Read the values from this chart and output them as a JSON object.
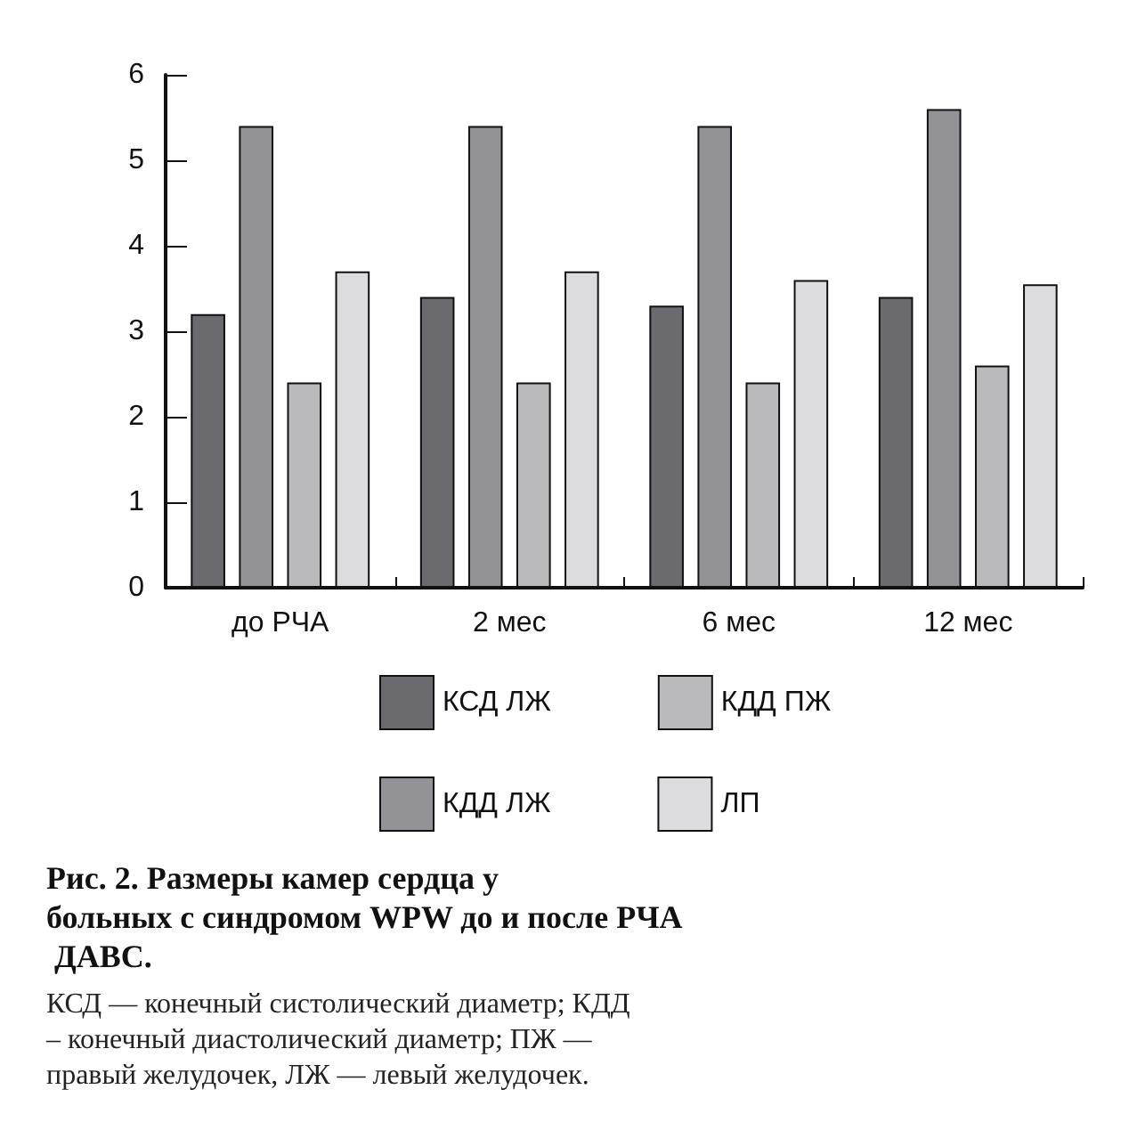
{
  "chart_data": {
    "type": "bar",
    "title": "Рис. 2. Размеры камер сердца у больных с синдромом WPW до и после РЧА ДАВС.",
    "annotations": [
      "КСД — конечный систолический диаметр; КДД – конечный диастолический диаметр; ПЖ —  правый желудочек, ЛЖ — левый желудочек."
    ],
    "categories": [
      "до РЧА",
      "2 мес",
      "6 мес",
      "12 мес"
    ],
    "series": [
      {
        "name": "КСД ЛЖ",
        "color": "#6b6b6f",
        "values": [
          3.2,
          3.4,
          3.3,
          3.4
        ]
      },
      {
        "name": "КДД ЛЖ",
        "color": "#939397",
        "values": [
          5.4,
          5.4,
          5.4,
          5.6
        ]
      },
      {
        "name": "КДД ПЖ",
        "color": "#bababd",
        "values": [
          2.4,
          2.4,
          2.4,
          2.6
        ]
      },
      {
        "name": "ЛП",
        "color": "#dcdcde",
        "values": [
          3.7,
          3.7,
          3.6,
          3.55
        ]
      }
    ],
    "ylim": [
      0,
      6
    ],
    "yticks": [
      0,
      1,
      2,
      3,
      4,
      5,
      6
    ],
    "grid": false,
    "legend": "bottom"
  }
}
